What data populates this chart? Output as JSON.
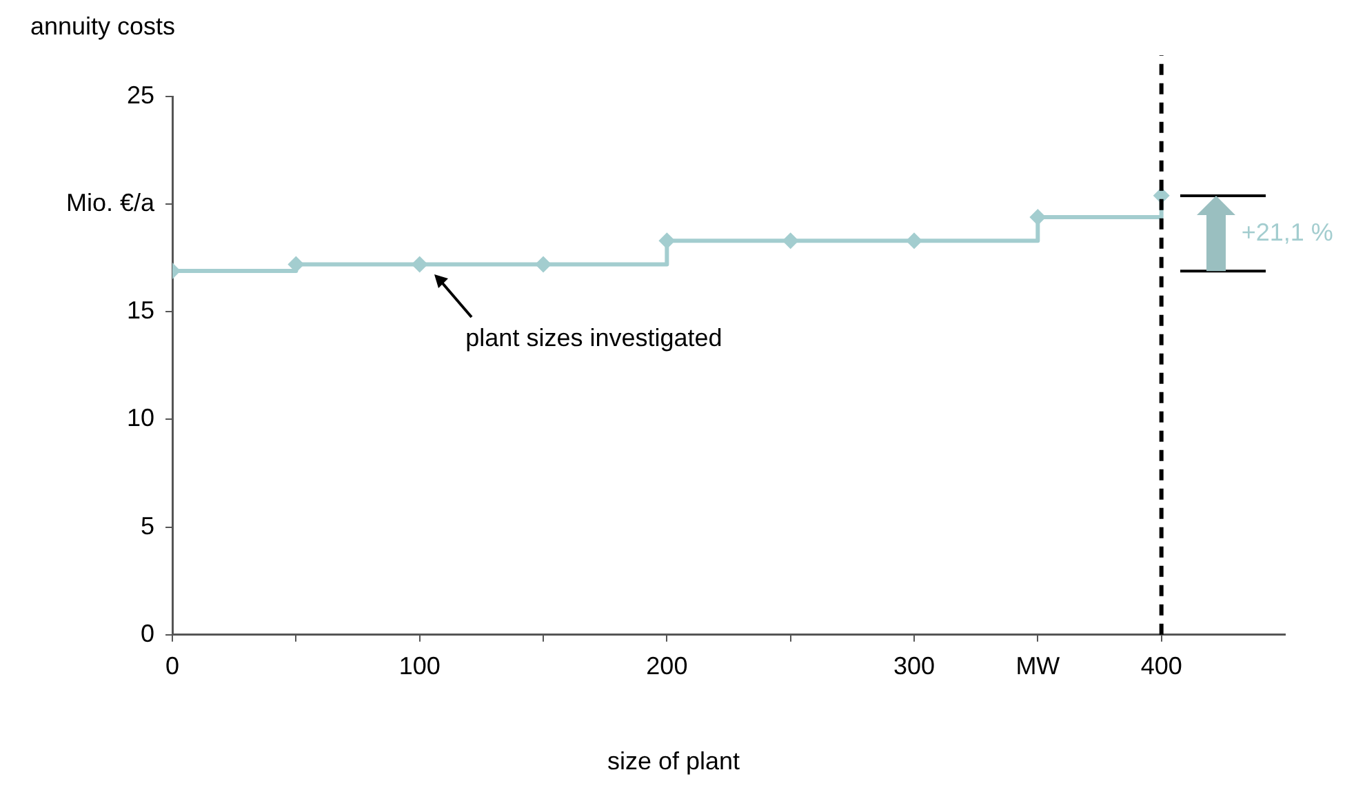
{
  "chart_data": {
    "type": "step",
    "ylabel": "annuity costs",
    "xlabel": "size of plant",
    "x": [
      0,
      50,
      100,
      150,
      200,
      250,
      300,
      350,
      400
    ],
    "series": [
      {
        "color": "#a3cdcf",
        "values": [
          16.9,
          17.2,
          17.2,
          17.2,
          18.3,
          18.3,
          18.3,
          19.4,
          20.4
        ]
      }
    ],
    "marker": "diamond",
    "xlim": [
      0,
      450
    ],
    "xticks": [
      0,
      {
        "value": 50,
        "label": null
      },
      100,
      {
        "value": 150,
        "label": null
      },
      200,
      {
        "value": 250,
        "label": null
      },
      300,
      {
        "value": 350,
        "label": "MW"
      },
      400
    ],
    "ylim": [
      0,
      25
    ],
    "yticks": [
      0,
      5,
      10,
      15,
      {
        "value": 20,
        "label": "Mio. €/a"
      },
      25
    ],
    "ref_lines": [
      {
        "axis": "x",
        "value": 400,
        "label": null,
        "color": "#000000",
        "line_style": "dashed"
      }
    ],
    "annotations": [
      "plant sizes investigated",
      "+21,1 %"
    ]
  }
}
